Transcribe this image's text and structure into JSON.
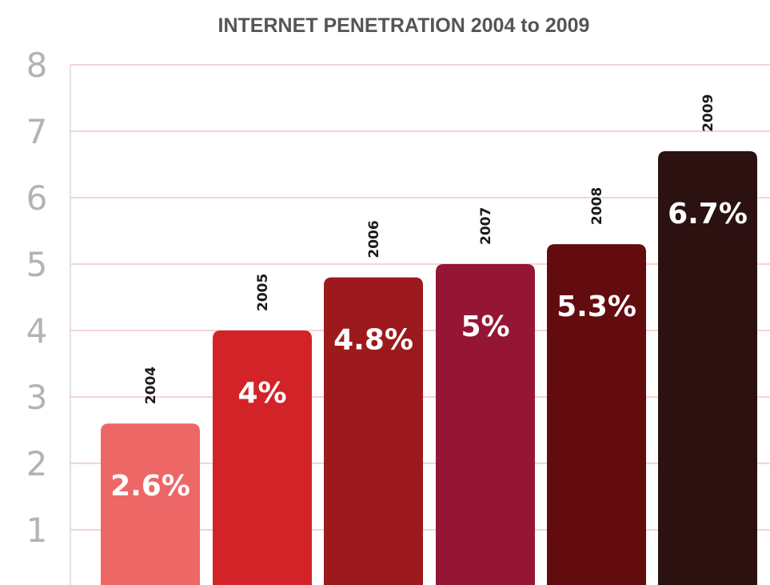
{
  "chart_data": {
    "type": "bar",
    "title": "INTERNET PENETRATION 2004 to 2009",
    "categories": [
      "2004",
      "2005",
      "2006",
      "2007",
      "2008",
      "2009"
    ],
    "values": [
      2.6,
      4,
      4.8,
      5,
      5.3,
      6.7
    ],
    "value_labels": [
      "2.6%",
      "4%",
      "4.8%",
      "5%",
      "5.3%",
      "6.7%"
    ],
    "yticks": [
      "1",
      "2",
      "3",
      "4",
      "5",
      "6",
      "7",
      "8"
    ],
    "ylim": [
      0,
      8
    ],
    "grid": true,
    "bar_colors": [
      "#ee6767",
      "#d22328",
      "#9c1a1d",
      "#951634",
      "#630c10",
      "#2c1111"
    ],
    "grid_color": "#f2c6c6",
    "tick_color": "#b3b3b3",
    "title_color": "#555555"
  }
}
